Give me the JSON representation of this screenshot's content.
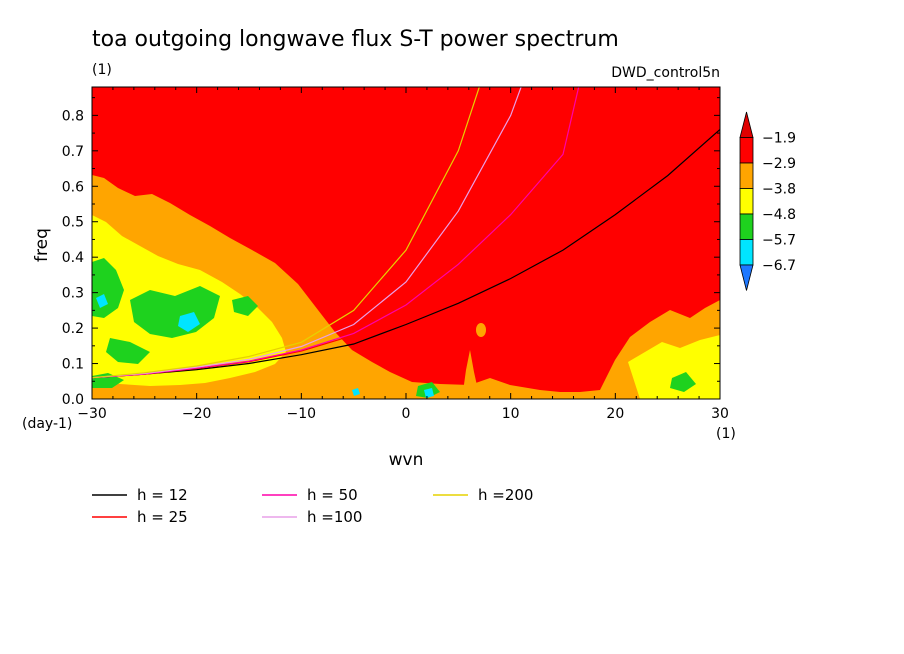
{
  "header": {
    "title": "toa outgoing longwave flux S-T power spectrum",
    "units": "(1)",
    "dataset": "DWD_control5n"
  },
  "chart_data": {
    "type": "heatmap",
    "title": "toa outgoing longwave flux S-T power spectrum",
    "xlabel": "wvn",
    "ylabel": "freq",
    "x_unit": "(1)",
    "y_unit": "(day-1)",
    "xlim": [
      -30,
      30
    ],
    "ylim": [
      0,
      0.88
    ],
    "x_ticks": [
      -30,
      -20,
      -10,
      0,
      10,
      20,
      30
    ],
    "x_tick_labels": [
      "−30",
      "−20",
      "−10",
      "0",
      "10",
      "20",
      "30"
    ],
    "y_ticks": [
      0.0,
      0.1,
      0.2,
      0.3,
      0.4,
      0.5,
      0.6,
      0.7,
      0.8
    ],
    "y_tick_labels": [
      "0.0",
      "0.1",
      "0.2",
      "0.3",
      "0.4",
      "0.5",
      "0.6",
      "0.7",
      "0.8"
    ],
    "colorbar": {
      "levels": [
        -6.7,
        -5.7,
        -4.8,
        -3.8,
        -2.9,
        -1.9
      ],
      "labels": [
        "−6.7",
        "−5.7",
        "−4.8",
        "−3.8",
        "−2.9",
        "−1.9"
      ],
      "colors": [
        "#1e78ff",
        "#00e5ff",
        "#1ed21e",
        "#ffff00",
        "#ffa500",
        "#ff0000",
        "#e00000"
      ]
    },
    "contours": [
      {
        "name": "h = 12",
        "color": "#000000",
        "points": [
          [
            -30,
            0.06
          ],
          [
            -25,
            0.07
          ],
          [
            -20,
            0.083
          ],
          [
            -15,
            0.1
          ],
          [
            -10,
            0.125
          ],
          [
            -5,
            0.155
          ],
          [
            0,
            0.21
          ],
          [
            5,
            0.27
          ],
          [
            10,
            0.34
          ],
          [
            15,
            0.42
          ],
          [
            20,
            0.52
          ],
          [
            25,
            0.63
          ],
          [
            30,
            0.76
          ]
        ]
      },
      {
        "name": "h = 25",
        "color": "#ff0000",
        "points": [
          [
            -30,
            0.06
          ],
          [
            -25,
            0.07
          ],
          [
            -20,
            0.086
          ],
          [
            -15,
            0.105
          ],
          [
            -10,
            0.135
          ],
          [
            -5,
            0.18
          ],
          [
            0,
            0.26
          ],
          [
            5,
            0.37
          ],
          [
            10,
            0.5
          ],
          [
            15,
            0.65
          ],
          [
            20,
            0.83
          ]
        ]
      },
      {
        "name": "h = 50",
        "color": "#ff00aa",
        "points": [
          [
            -30,
            0.06
          ],
          [
            -25,
            0.07
          ],
          [
            -20,
            0.087
          ],
          [
            -15,
            0.107
          ],
          [
            -10,
            0.138
          ],
          [
            -5,
            0.185
          ],
          [
            0,
            0.265
          ],
          [
            5,
            0.38
          ],
          [
            10,
            0.52
          ],
          [
            15,
            0.69
          ],
          [
            16.5,
            0.88
          ]
        ]
      },
      {
        "name": "h =100",
        "color": "#e8a0e8",
        "points": [
          [
            -30,
            0.06
          ],
          [
            -25,
            0.072
          ],
          [
            -20,
            0.09
          ],
          [
            -15,
            0.112
          ],
          [
            -10,
            0.148
          ],
          [
            -5,
            0.21
          ],
          [
            0,
            0.33
          ],
          [
            5,
            0.53
          ],
          [
            10,
            0.8
          ],
          [
            11,
            0.88
          ]
        ]
      },
      {
        "name": "h =200",
        "color": "#e6d200",
        "points": [
          [
            -30,
            0.06
          ],
          [
            -25,
            0.074
          ],
          [
            -20,
            0.093
          ],
          [
            -15,
            0.12
          ],
          [
            -10,
            0.16
          ],
          [
            -5,
            0.25
          ],
          [
            0,
            0.42
          ],
          [
            5,
            0.7
          ],
          [
            7,
            0.88
          ]
        ]
      }
    ]
  },
  "legend": [
    {
      "label": "h = 12",
      "color": "#000000"
    },
    {
      "label": "h = 25",
      "color": "#ff0000"
    },
    {
      "label": "h = 50",
      "color": "#ff00aa"
    },
    {
      "label": "h =100",
      "color": "#e8a0e8"
    },
    {
      "label": "h =200",
      "color": "#e6d200"
    }
  ]
}
